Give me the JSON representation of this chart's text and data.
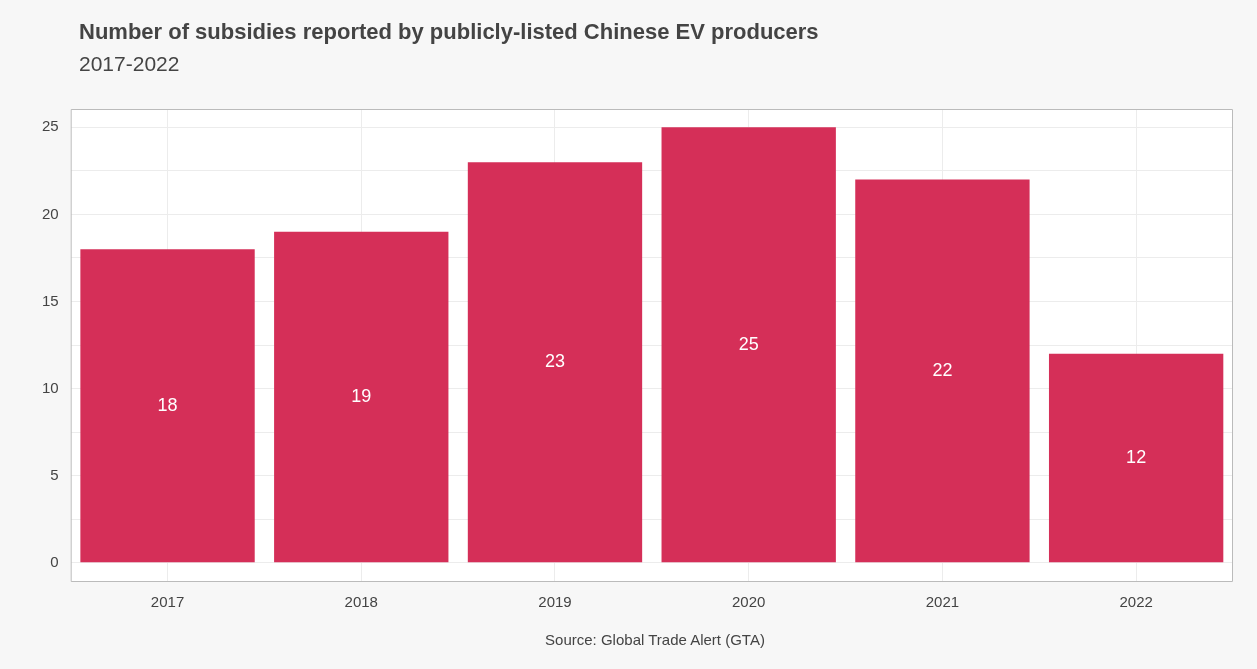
{
  "chart_data": {
    "type": "bar",
    "title": "Number of subsidies reported by publicly-listed Chinese EV producers",
    "subtitle": "2017-2022",
    "categories": [
      "2017",
      "2018",
      "2019",
      "2020",
      "2021",
      "2022"
    ],
    "values": [
      18,
      19,
      23,
      25,
      22,
      12
    ],
    "color": "#d52f58",
    "ylim": [
      -1.1,
      26.05
    ],
    "yticks": [
      0,
      {
        "value": 2.5,
        "label": null
      },
      5,
      {
        "value": 7.5,
        "label": null
      },
      10,
      {
        "value": 12.5,
        "label": null
      },
      15,
      {
        "value": 17.5,
        "label": null
      },
      20,
      {
        "value": 22.5,
        "label": null
      },
      25
    ],
    "grid": true,
    "data_labels": true,
    "annotations": [
      "Source: Global Trade Alert (GTA)"
    ]
  }
}
